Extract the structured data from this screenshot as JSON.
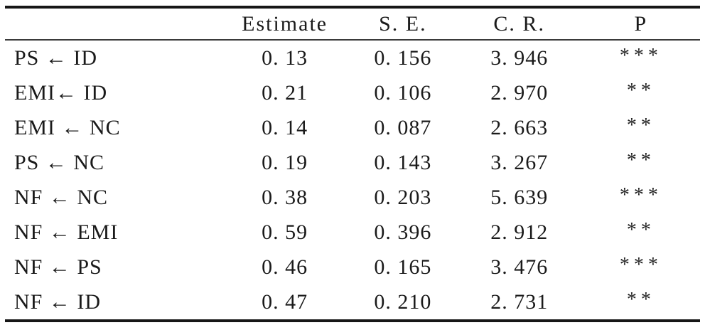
{
  "meta": {
    "description": "SEM path analysis regression weights results table",
    "background_color": "#ffffff",
    "text_color": "#1a1a1a",
    "rule_color": "#161616",
    "header_rule_color": "#3a3a3a"
  },
  "table": {
    "columns": [
      {
        "key": "path",
        "label": ""
      },
      {
        "key": "estimate",
        "label": "Estimate"
      },
      {
        "key": "se",
        "label": "S. E."
      },
      {
        "key": "cr",
        "label": "C. R."
      },
      {
        "key": "p",
        "label": "P"
      }
    ],
    "rows": [
      {
        "path": "PS ← ID",
        "estimate": "0. 13",
        "se": "0. 156",
        "cr": "3. 946",
        "p": "***"
      },
      {
        "path": "EMI← ID",
        "estimate": "0. 21",
        "se": "0. 106",
        "cr": "2. 970",
        "p": "**"
      },
      {
        "path": "EMI ← NC",
        "estimate": "0. 14",
        "se": "0. 087",
        "cr": "2. 663",
        "p": "**"
      },
      {
        "path": "PS ← NC",
        "estimate": "0. 19",
        "se": "0. 143",
        "cr": "3. 267",
        "p": "**"
      },
      {
        "path": "NF ← NC",
        "estimate": "0. 38",
        "se": "0. 203",
        "cr": "5. 639",
        "p": "***"
      },
      {
        "path": "NF ← EMI",
        "estimate": "0. 59",
        "se": "0. 396",
        "cr": "2. 912",
        "p": "**"
      },
      {
        "path": "NF ← PS",
        "estimate": "0. 46",
        "se": "0. 165",
        "cr": "3. 476",
        "p": "***"
      },
      {
        "path": "NF ← ID",
        "estimate": "0. 47",
        "se": "0. 210",
        "cr": "2. 731",
        "p": "**"
      }
    ]
  }
}
